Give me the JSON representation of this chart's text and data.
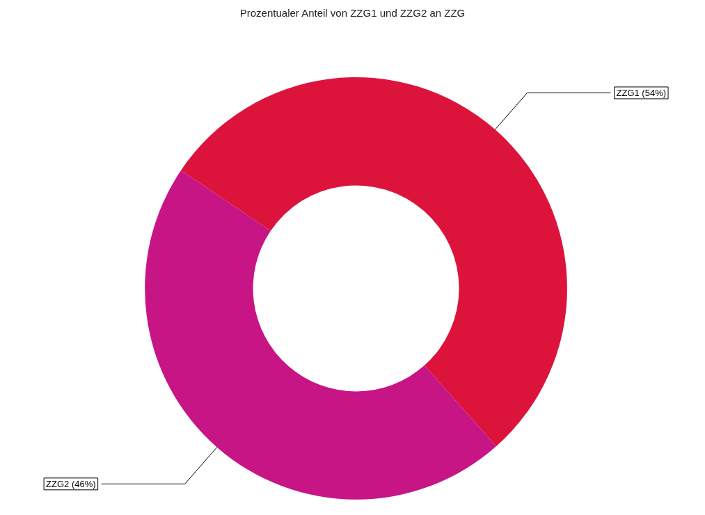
{
  "chart_data": {
    "type": "donut",
    "title": "Prozentualer Anteil von ZZG1 und ZZG2 an ZZG",
    "categories": [
      "ZZG1",
      "ZZG2"
    ],
    "values": [
      54,
      46
    ],
    "colors": [
      "#dc143c",
      "#c71585"
    ],
    "value_labels": [
      "(54%)",
      "(46%)"
    ]
  }
}
